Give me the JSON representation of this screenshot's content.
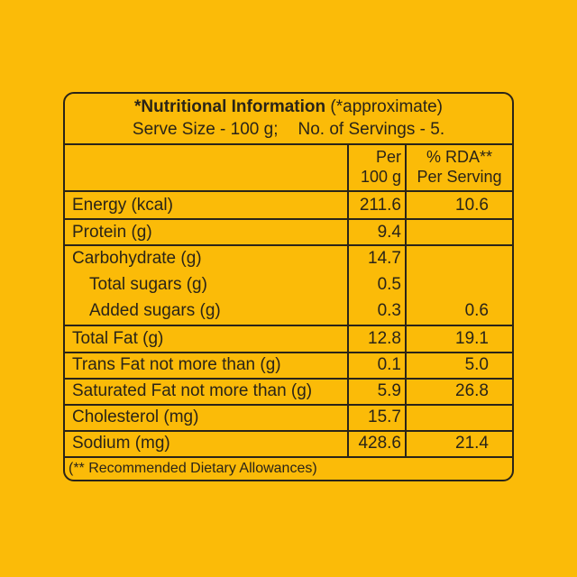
{
  "title": {
    "bold": "*Nutritional Information",
    "normal": "(*approximate)",
    "serve_size": "Serve Size - 100 g;",
    "servings": "No. of Servings - 5."
  },
  "columns": {
    "per_line1": "Per",
    "per_line2": "100 g",
    "rda_line1": "% RDA**",
    "rda_line2": "Per Serving"
  },
  "rows": [
    {
      "name": "Energy (kcal)",
      "per": "211.6",
      "rda": "10.6"
    },
    {
      "name": "Protein (g)",
      "per": "9.4",
      "rda": ""
    },
    {
      "name": "Carbohydrate (g)",
      "per": "14.7",
      "rda": ""
    },
    {
      "name": "Total sugars (g)",
      "per": "0.5",
      "rda": ""
    },
    {
      "name": "Added sugars (g)",
      "per": "0.3",
      "rda": "0.6"
    },
    {
      "name": "Total Fat (g)",
      "per": "12.8",
      "rda": "19.1"
    },
    {
      "name": "Trans Fat not more than (g)",
      "per": "0.1",
      "rda": "5.0"
    },
    {
      "name": "Saturated Fat not more than (g)",
      "per": "5.9",
      "rda": "26.8"
    },
    {
      "name": "Cholesterol (mg)",
      "per": "15.7",
      "rda": ""
    },
    {
      "name": "Sodium (mg)",
      "per": "428.6",
      "rda": "21.4"
    }
  ],
  "footnote": "(** Recommended Dietary Allowances)",
  "colors": {
    "background": "#fbbb08",
    "ink": "#2a2418"
  }
}
